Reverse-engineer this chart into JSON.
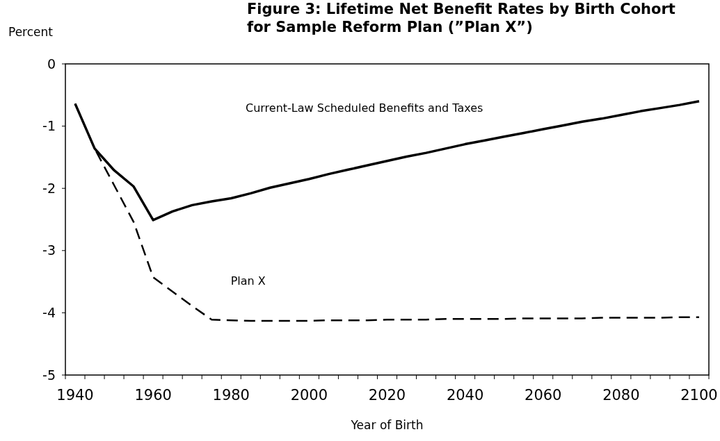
{
  "chart_data": {
    "type": "line",
    "title": "Figure 3:  Lifetime Net Benefit Rates by Birth Cohort for Sample Reform Plan (”Plan X”)",
    "xlabel": "Year of Birth",
    "ylabel": "Percent",
    "categories": [
      "1940",
      null,
      null,
      null,
      "1960",
      null,
      null,
      null,
      "1980",
      null,
      null,
      null,
      "2000",
      null,
      null,
      null,
      "2020",
      null,
      null,
      null,
      "2040",
      null,
      null,
      null,
      "2060",
      null,
      null,
      null,
      "2080",
      null,
      null,
      null,
      "2100"
    ],
    "ylim": [
      -5,
      0
    ],
    "yticks": [
      0,
      -1,
      -2,
      -3,
      -4,
      -5
    ],
    "grid": false,
    "marker": "none",
    "series": [
      {
        "name": "Current-Law Scheduled Benefits and Taxes",
        "color": "#000000",
        "line_style": "solid",
        "values": [
          -0.64,
          -1.36,
          -1.71,
          -1.97,
          -2.51,
          -2.37,
          -2.27,
          -2.21,
          -2.16,
          -2.08,
          -1.99,
          -1.92,
          -1.85,
          -1.77,
          -1.7,
          -1.63,
          -1.56,
          -1.49,
          -1.43,
          -1.36,
          -1.29,
          -1.23,
          -1.17,
          -1.11,
          -1.05,
          -0.99,
          -0.93,
          -0.88,
          -0.82,
          -0.76,
          -0.71,
          -0.66,
          -0.6
        ]
      },
      {
        "name": "Plan X",
        "color": "#000000",
        "line_style": "dashed",
        "values": [
          -0.64,
          -1.36,
          -1.95,
          -2.54,
          -3.43,
          -3.66,
          -3.89,
          -4.11,
          -4.12,
          -4.13,
          -4.13,
          -4.13,
          -4.13,
          -4.12,
          -4.12,
          -4.12,
          -4.11,
          -4.11,
          -4.11,
          -4.1,
          -4.1,
          -4.1,
          -4.1,
          -4.09,
          -4.09,
          -4.09,
          -4.09,
          -4.08,
          -4.08,
          -4.08,
          -4.08,
          -4.07,
          -4.07
        ]
      }
    ]
  }
}
